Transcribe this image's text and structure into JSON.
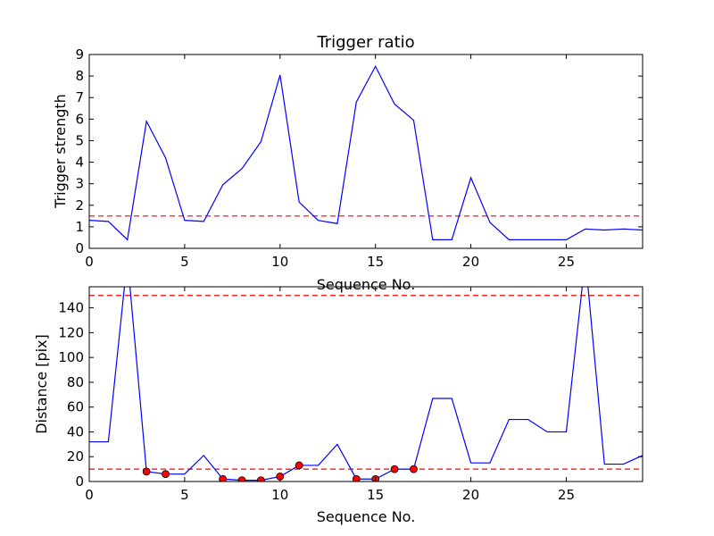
{
  "chart_data": [
    {
      "type": "line",
      "title": "Trigger ratio",
      "xlabel": "Sequence No.",
      "ylabel": "Trigger strength",
      "xlim": [
        0,
        29
      ],
      "ylim": [
        0,
        9
      ],
      "xticks": [
        0,
        5,
        10,
        15,
        20,
        25
      ],
      "yticks": [
        0,
        1,
        2,
        3,
        4,
        5,
        6,
        7,
        8,
        9
      ],
      "grid": false,
      "series": [
        {
          "color": "#0000ff",
          "x": [
            0,
            1,
            2,
            3,
            4,
            5,
            6,
            7,
            8,
            9,
            10,
            11,
            12,
            13,
            14,
            15,
            16,
            17,
            18,
            19,
            20,
            21,
            22,
            23,
            24,
            25,
            26,
            27,
            28,
            29
          ],
          "y": [
            1.3,
            1.25,
            0.4,
            5.9,
            4.2,
            1.3,
            1.25,
            2.95,
            3.7,
            4.95,
            8.05,
            2.15,
            1.3,
            1.15,
            6.8,
            8.45,
            6.7,
            5.95,
            0.4,
            0.4,
            3.28,
            1.2,
            0.4,
            0.4,
            0.4,
            0.4,
            0.9,
            0.85,
            0.9,
            0.85
          ]
        }
      ],
      "threshold_lines": [
        {
          "y": 1.5,
          "color": "#ff0000",
          "style": "dashed"
        }
      ]
    },
    {
      "type": "line",
      "title": "",
      "xlabel": "Sequence No.",
      "ylabel": "Distance [pix]",
      "xlim": [
        0,
        29
      ],
      "ylim": [
        0,
        157
      ],
      "xticks": [
        0,
        5,
        10,
        15,
        20,
        25
      ],
      "yticks": [
        0,
        20,
        40,
        60,
        80,
        100,
        120,
        140
      ],
      "grid": false,
      "series": [
        {
          "color": "#0000ff",
          "x": [
            0,
            1,
            2,
            3,
            4,
            5,
            6,
            7,
            8,
            9,
            10,
            11,
            12,
            13,
            14,
            15,
            16,
            17,
            18,
            19,
            20,
            21,
            22,
            23,
            24,
            25,
            26,
            27,
            28,
            29
          ],
          "y": [
            32,
            32,
            180,
            8,
            6,
            6,
            21,
            2,
            1,
            1,
            4,
            13,
            13,
            30,
            2,
            2,
            10,
            10,
            67,
            67,
            15,
            15,
            50,
            50,
            40,
            40,
            180,
            14,
            14,
            21
          ]
        },
        {
          "type": "scatter",
          "marker": "circle",
          "color": "#ff0000",
          "x": [
            3,
            4,
            7,
            8,
            9,
            10,
            11,
            14,
            15,
            16,
            17
          ],
          "y": [
            8,
            6,
            2,
            1,
            1,
            4,
            13,
            2,
            2,
            10,
            10
          ]
        }
      ],
      "threshold_lines": [
        {
          "y": 150,
          "color": "#ff0000",
          "style": "dashed"
        },
        {
          "y": 10,
          "color": "#ff0000",
          "style": "dashed"
        }
      ]
    }
  ]
}
